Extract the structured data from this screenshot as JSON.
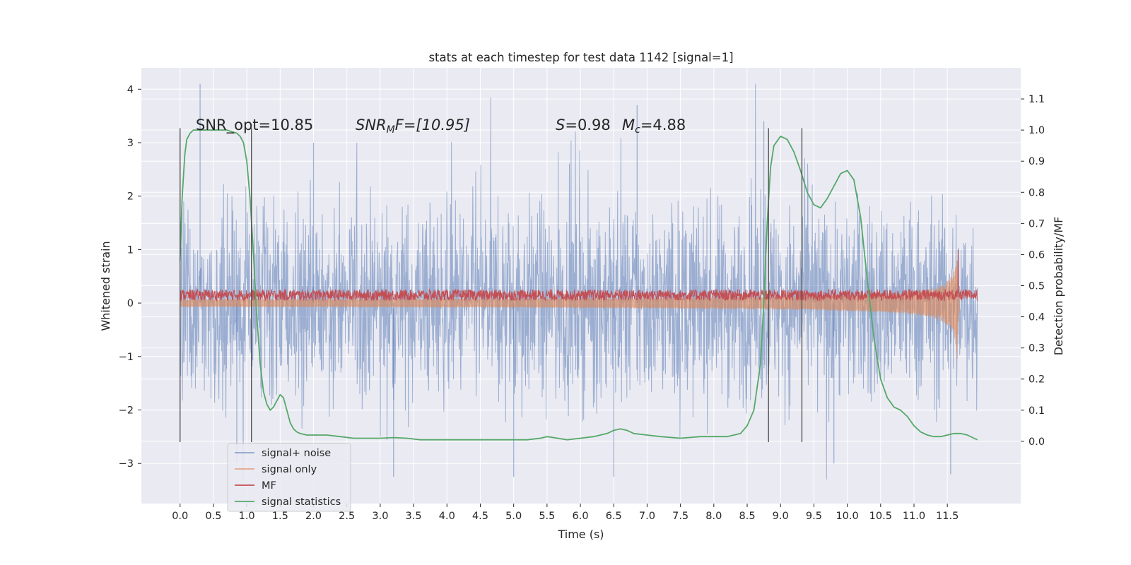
{
  "chart_data": {
    "type": "line",
    "title": "stats at each timestep for test data 1142 [signal=1]",
    "xlabel": "Time (s)",
    "ylabel": "Whitened strain",
    "ylabel_right": "Detection probability/MF",
    "xlim": [
      -0.58,
      12.6
    ],
    "ylim": [
      -3.75,
      4.4
    ],
    "ylim_right": [
      -0.2,
      1.2
    ],
    "x_ticks": [
      "0.0",
      "0.5",
      "1.0",
      "1.5",
      "2.0",
      "2.5",
      "3.0",
      "3.5",
      "4.0",
      "4.5",
      "5.0",
      "5.5",
      "6.0",
      "6.5",
      "7.0",
      "7.5",
      "8.0",
      "8.5",
      "9.0",
      "9.5",
      "10.0",
      "10.5",
      "11.0",
      "11.5"
    ],
    "y_ticks": [
      "4",
      "3",
      "2",
      "1",
      "0",
      "−1",
      "−2",
      "−3"
    ],
    "y_ticks_right": [
      "1.1",
      "1.0",
      "0.9",
      "0.8",
      "0.7",
      "0.6",
      "0.5",
      "0.4",
      "0.3",
      "0.2",
      "0.1",
      "0.0"
    ],
    "grid": true,
    "legend_position": "lower-left",
    "annotations": {
      "snr_opt": "SNR_opt=10.85",
      "snr_mf_name": "SNR",
      "snr_mf_sub": "M",
      "snr_mf_tail": "F=[10.95]",
      "s_name": "S",
      "s_value": "=0.98",
      "mc_name": "M",
      "mc_sub": "c",
      "mc_value": "=4.88"
    },
    "colors": {
      "background": "#eaeaf2",
      "grid": "#ffffff",
      "signal_noise": "#4c72b0",
      "signal_only": "#dd8452",
      "mf": "#c44e52",
      "statistics": "#55a868",
      "marker": "#555555"
    },
    "series": [
      {
        "name": "signal+ noise",
        "axis": "left",
        "style": "noise",
        "x_range": [
          0.0,
          11.95
        ],
        "envelope": [
          -2.3,
          2.3
        ],
        "max_spike": 4.1,
        "min_spike": -3.3
      },
      {
        "name": "signal only",
        "axis": "left",
        "style": "chirp",
        "x_range": [
          0.0,
          11.68
        ],
        "amplitude_start": 0.03,
        "amplitude_peak": 1.1,
        "peak_x": 11.65
      },
      {
        "name": "MF",
        "axis": "left",
        "style": "band",
        "x_range": [
          0.0,
          11.95
        ],
        "band": [
          0.0,
          0.3
        ],
        "spike_x": 11.66,
        "spike_y": 1.0
      },
      {
        "name": "signal statistics",
        "axis": "right",
        "x": [
          0.0,
          0.03,
          0.07,
          0.1,
          0.15,
          0.2,
          0.3,
          0.5,
          0.7,
          0.85,
          0.9,
          0.95,
          1.0,
          1.05,
          1.1,
          1.15,
          1.2,
          1.25,
          1.3,
          1.35,
          1.4,
          1.45,
          1.5,
          1.55,
          1.6,
          1.65,
          1.7,
          1.75,
          1.8,
          1.9,
          2.0,
          2.1,
          2.2,
          2.4,
          2.6,
          2.8,
          3.0,
          3.2,
          3.4,
          3.6,
          3.8,
          4.0,
          4.5,
          5.0,
          5.2,
          5.4,
          5.5,
          5.6,
          5.8,
          6.0,
          6.2,
          6.4,
          6.5,
          6.6,
          6.7,
          6.8,
          7.0,
          7.2,
          7.5,
          7.8,
          8.0,
          8.2,
          8.4,
          8.5,
          8.6,
          8.7,
          8.75,
          8.8,
          8.85,
          8.9,
          9.0,
          9.1,
          9.2,
          9.3,
          9.4,
          9.5,
          9.6,
          9.7,
          9.8,
          9.9,
          10.0,
          10.1,
          10.2,
          10.3,
          10.4,
          10.5,
          10.6,
          10.7,
          10.8,
          10.9,
          11.0,
          11.1,
          11.2,
          11.3,
          11.4,
          11.5,
          11.6,
          11.7,
          11.8,
          11.9,
          11.95
        ],
        "values": [
          0.58,
          0.78,
          0.92,
          0.97,
          0.99,
          1.0,
          1.0,
          1.0,
          1.0,
          0.99,
          0.98,
          0.96,
          0.9,
          0.78,
          0.6,
          0.4,
          0.25,
          0.16,
          0.12,
          0.1,
          0.11,
          0.13,
          0.15,
          0.14,
          0.1,
          0.06,
          0.04,
          0.03,
          0.025,
          0.02,
          0.02,
          0.02,
          0.02,
          0.015,
          0.01,
          0.01,
          0.01,
          0.012,
          0.01,
          0.005,
          0.005,
          0.005,
          0.005,
          0.005,
          0.005,
          0.01,
          0.015,
          0.012,
          0.005,
          0.01,
          0.015,
          0.025,
          0.035,
          0.04,
          0.035,
          0.025,
          0.02,
          0.015,
          0.01,
          0.015,
          0.015,
          0.015,
          0.025,
          0.05,
          0.1,
          0.25,
          0.45,
          0.7,
          0.88,
          0.95,
          0.98,
          0.97,
          0.93,
          0.87,
          0.8,
          0.76,
          0.75,
          0.78,
          0.82,
          0.86,
          0.87,
          0.84,
          0.72,
          0.52,
          0.33,
          0.2,
          0.14,
          0.11,
          0.1,
          0.08,
          0.05,
          0.03,
          0.02,
          0.015,
          0.015,
          0.02,
          0.025,
          0.025,
          0.02,
          0.01,
          0.005
        ]
      }
    ],
    "markers_x": [
      0.0,
      1.07,
      8.82,
      9.32
    ]
  }
}
